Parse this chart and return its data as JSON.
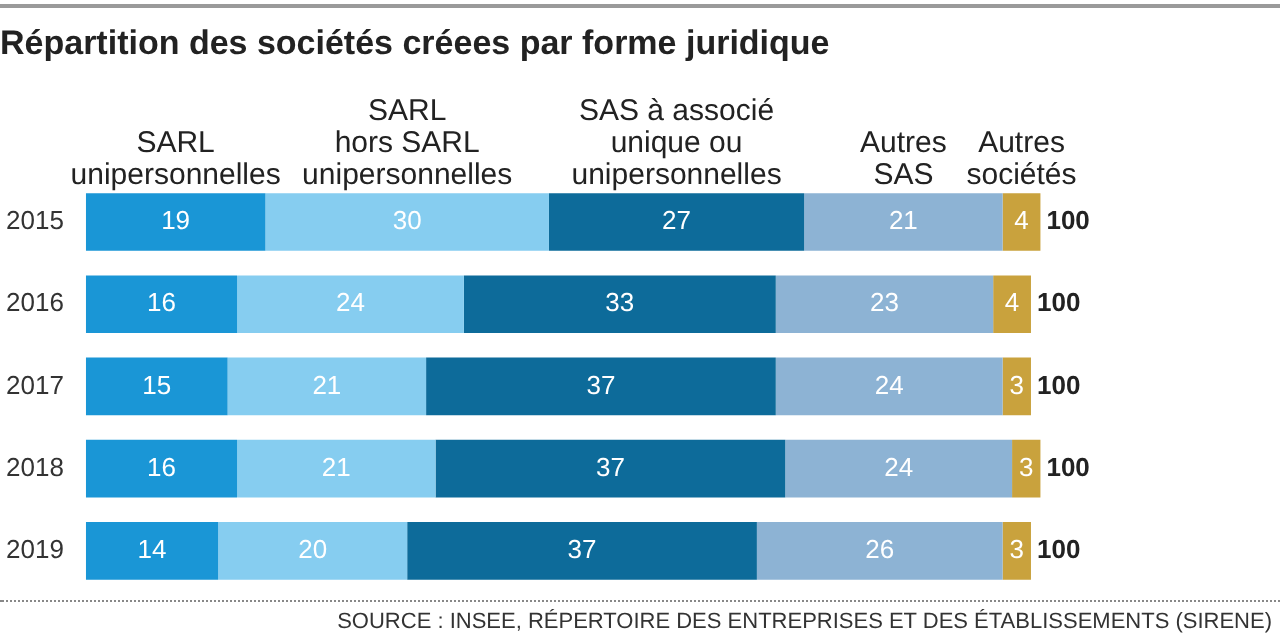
{
  "chart_data": {
    "type": "bar",
    "orientation": "horizontal",
    "stacked": true,
    "title": "Répartition des sociétés créees par forme juridique",
    "categories": [
      "2015",
      "2016",
      "2017",
      "2018",
      "2019"
    ],
    "series": [
      {
        "name": "SARL\nunipersonnelles",
        "color": "#1a96d6",
        "values": [
          19,
          16,
          15,
          16,
          14
        ]
      },
      {
        "name": "SARL\nhors SARL\nunipersonnelles",
        "color": "#86cdf0",
        "values": [
          30,
          24,
          21,
          21,
          20
        ]
      },
      {
        "name": "SAS à associé\nunique ou\nunipersonnelles",
        "color": "#0d6b9a",
        "values": [
          27,
          33,
          37,
          37,
          37
        ]
      },
      {
        "name": "Autres\nSAS",
        "color": "#8db3d4",
        "values": [
          21,
          23,
          24,
          24,
          26
        ]
      },
      {
        "name": "Autres\nsociétés",
        "color": "#c9a23d",
        "values": [
          4,
          4,
          3,
          3,
          3
        ]
      }
    ],
    "data_labels": true,
    "totals": [
      "100",
      "100",
      "100",
      "100",
      "100"
    ],
    "legend": false,
    "annotations": [
      "SOURCE : INSEE, RÉPERTOIRE DES ENTREPRISES ET DES ÉTABLISSEMENTS (SIRENE)"
    ]
  }
}
